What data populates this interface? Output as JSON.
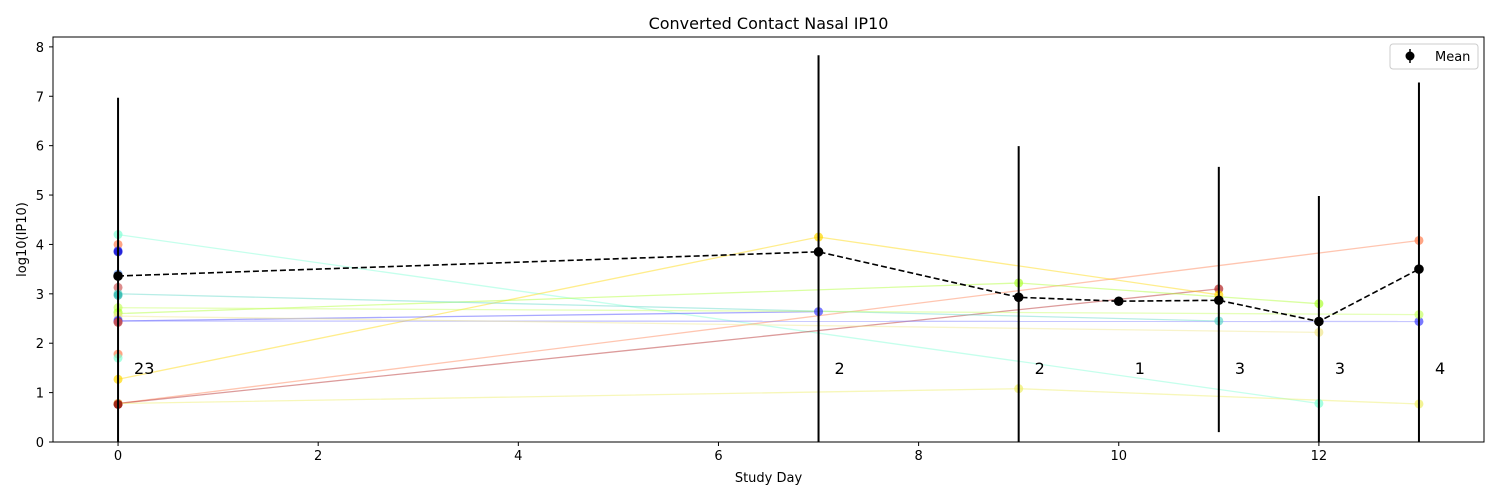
{
  "chart_data": {
    "type": "line",
    "title": "Converted Contact Nasal IP10",
    "xlabel": "Study Day",
    "ylabel": "log10(IP10)",
    "xlim": [
      -0.65,
      13.65
    ],
    "ylim": [
      0,
      8.2
    ],
    "xticks": [
      0,
      2,
      4,
      6,
      8,
      10,
      12
    ],
    "yticks": [
      0,
      1,
      2,
      3,
      4,
      5,
      6,
      7,
      8
    ],
    "grid": false,
    "legend": {
      "placement": "top-right",
      "entries": [
        "Mean"
      ]
    },
    "mean": {
      "name": "Mean",
      "color": "#000000",
      "x": [
        0,
        7,
        9,
        10,
        11,
        12,
        13
      ],
      "y": [
        3.36,
        3.85,
        2.93,
        2.85,
        2.87,
        2.44,
        3.5
      ],
      "err_low": [
        0,
        0,
        0,
        2.85,
        0.2,
        0,
        0
      ],
      "err_high": [
        6.97,
        7.83,
        5.99,
        2.85,
        5.57,
        4.98,
        7.28
      ]
    },
    "counts": {
      "x": [
        0,
        7,
        9,
        10,
        11,
        12,
        13
      ],
      "labels": [
        "23",
        "2",
        "2",
        "1",
        "3",
        "3",
        "4"
      ],
      "y": 1.5
    },
    "subjects": [
      {
        "color": "#7fffd4",
        "x": [
          0,
          12
        ],
        "y": [
          4.2,
          0.78
        ]
      },
      {
        "color": "#ff7f50",
        "x": [
          0,
          13
        ],
        "y": [
          0.78,
          4.08
        ]
      },
      {
        "color": "#b22222",
        "x": [
          0,
          11
        ],
        "y": [
          0.78,
          3.1
        ]
      },
      {
        "color": "#ffd700",
        "x": [
          0,
          7,
          11
        ],
        "y": [
          1.27,
          4.15,
          2.98
        ]
      },
      {
        "color": "#4040ff",
        "x": [
          0,
          7
        ],
        "y": [
          2.45,
          2.64
        ]
      },
      {
        "color": "#8080ff",
        "x": [
          0,
          13
        ],
        "y": [
          2.45,
          2.44
        ]
      },
      {
        "color": "#adff2f",
        "x": [
          0,
          9,
          12
        ],
        "y": [
          2.6,
          3.22,
          2.8
        ]
      },
      {
        "color": "#eeee66",
        "x": [
          0,
          9,
          13
        ],
        "y": [
          0.78,
          1.08,
          0.77
        ]
      },
      {
        "color": "#5fd6c8",
        "x": [
          0,
          11
        ],
        "y": [
          3.0,
          2.45
        ]
      },
      {
        "color": "#c8ff64",
        "x": [
          0,
          13
        ],
        "y": [
          2.72,
          2.58
        ]
      },
      {
        "color": "#f0e68c",
        "x": [
          0,
          12
        ],
        "y": [
          2.55,
          2.22
        ]
      }
    ],
    "day0_points": [
      {
        "y": 4.2,
        "color": "#7fffd4"
      },
      {
        "y": 4.0,
        "color": "#ff7f50"
      },
      {
        "y": 3.87,
        "color": "#4040ff"
      },
      {
        "y": 3.85,
        "color": "#0000cd"
      },
      {
        "y": 3.4,
        "color": "#6495ed"
      },
      {
        "y": 3.13,
        "color": "#cd5c5c"
      },
      {
        "y": 3.0,
        "color": "#5fd6c8"
      },
      {
        "y": 2.97,
        "color": "#20b2aa"
      },
      {
        "y": 2.72,
        "color": "#c8ff64"
      },
      {
        "y": 2.62,
        "color": "#adff2f"
      },
      {
        "y": 2.55,
        "color": "#f0e68c"
      },
      {
        "y": 2.47,
        "color": "#8080ff"
      },
      {
        "y": 2.45,
        "color": "#4040ff"
      },
      {
        "y": 2.43,
        "color": "#b22222"
      },
      {
        "y": 2.42,
        "color": "#cd5c5c"
      },
      {
        "y": 1.78,
        "color": "#ff7f50"
      },
      {
        "y": 1.7,
        "color": "#7fffd4"
      },
      {
        "y": 1.27,
        "color": "#ffd700"
      },
      {
        "y": 0.78,
        "color": "#b22222"
      },
      {
        "y": 0.77,
        "color": "#8b0000"
      },
      {
        "y": 0.78,
        "color": "#eeee66"
      },
      {
        "y": 0.77,
        "color": "#ff7f50"
      },
      {
        "y": 0.76,
        "color": "#800000"
      }
    ],
    "other_points": [
      {
        "x": 7,
        "y": 4.15,
        "color": "#ffd700"
      },
      {
        "x": 7,
        "y": 2.64,
        "color": "#4040ff"
      },
      {
        "x": 9,
        "y": 3.22,
        "color": "#adff2f"
      },
      {
        "x": 9,
        "y": 1.08,
        "color": "#eeee66"
      },
      {
        "x": 11,
        "y": 3.1,
        "color": "#b22222"
      },
      {
        "x": 11,
        "y": 2.45,
        "color": "#5fd6c8"
      },
      {
        "x": 11,
        "y": 2.98,
        "color": "#ffd700"
      },
      {
        "x": 12,
        "y": 2.8,
        "color": "#adff2f"
      },
      {
        "x": 12,
        "y": 0.78,
        "color": "#7fffd4"
      },
      {
        "x": 12,
        "y": 2.22,
        "color": "#f0e68c"
      },
      {
        "x": 13,
        "y": 4.08,
        "color": "#ff7f50"
      },
      {
        "x": 13,
        "y": 2.44,
        "color": "#4040ff"
      },
      {
        "x": 13,
        "y": 2.58,
        "color": "#c8ff64"
      },
      {
        "x": 13,
        "y": 0.77,
        "color": "#eeee66"
      }
    ]
  }
}
